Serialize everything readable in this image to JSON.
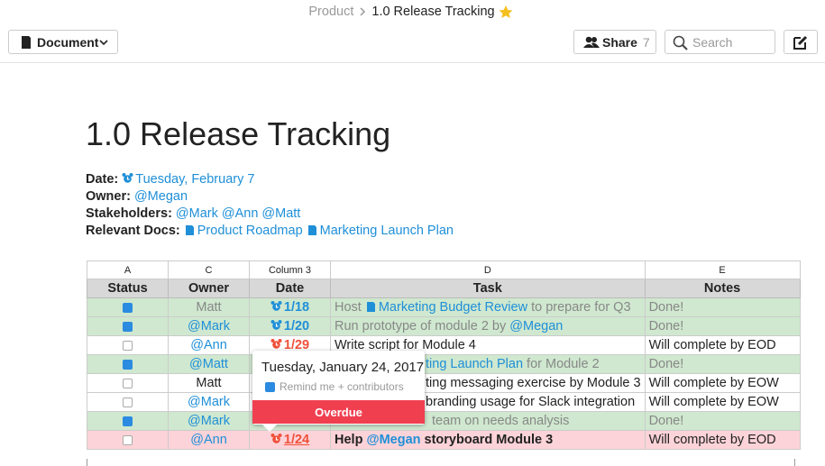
{
  "header": {
    "breadcrumb": [
      "Product",
      "1.0 Release Tracking"
    ],
    "document_button": "Document",
    "share": {
      "label": "Share",
      "count": 7
    },
    "search_placeholder": "Search"
  },
  "doc": {
    "title": "1.0 Release Tracking",
    "meta": [
      {
        "label": "Date:",
        "items": [
          {
            "text": "Tuesday, February 7",
            "kind": "date"
          }
        ]
      },
      {
        "label": "Owner:",
        "items": [
          {
            "text": "@Megan",
            "kind": "mention"
          }
        ]
      },
      {
        "label": "Stakeholders:",
        "items": [
          {
            "text": "@Mark",
            "kind": "mention"
          },
          {
            "text": "@Ann",
            "kind": "mention"
          },
          {
            "text": "@Matt",
            "kind": "mention"
          }
        ]
      },
      {
        "label": "Relevant Docs:",
        "items": [
          {
            "text": "Product Roadmap",
            "kind": "doc"
          },
          {
            "text": "Marketing Launch Plan",
            "kind": "doc"
          }
        ]
      }
    ]
  },
  "table": {
    "column_letters": [
      "A",
      "C",
      "Column 3",
      "D",
      "E"
    ],
    "headers": [
      "Status",
      "Owner",
      "Date",
      "Task",
      "Notes"
    ],
    "rows": [
      {
        "status": "done",
        "checked": true,
        "owner": "Matt",
        "date": {
          "text": "1/18",
          "overdue": false
        },
        "task": [
          {
            "text": "Host "
          },
          {
            "text": "Marketing Budget Review",
            "kind": "doc"
          },
          {
            "text": " to prepare for Q3"
          }
        ],
        "notes": "Done!"
      },
      {
        "status": "done",
        "checked": true,
        "owner": "@Mark",
        "date": {
          "text": "1/20",
          "overdue": false
        },
        "task": [
          {
            "text": "Run prototype of module 2 by "
          },
          {
            "text": "@Megan",
            "kind": "mention"
          }
        ],
        "notes": "Done!"
      },
      {
        "status": "open",
        "checked": false,
        "owner": "@Ann",
        "date": {
          "text": "1/29",
          "overdue": true
        },
        "task": [
          {
            "text": "Write script for Module 4"
          }
        ],
        "notes": "Will complete by EOD"
      },
      {
        "status": "done",
        "checked": true,
        "owner": "@Matt",
        "date": null,
        "task": [
          {
            "text": "ting Launch Plan",
            "kind": "link"
          },
          {
            "text": " for Module 2"
          }
        ],
        "notes": "Done!"
      },
      {
        "status": "open",
        "checked": false,
        "owner": "Matt",
        "date": null,
        "task": [
          {
            "text": "ting messaging exercise by Module 3"
          }
        ],
        "notes": "Will complete by EOW"
      },
      {
        "status": "open",
        "checked": false,
        "owner": "@Mark",
        "date": null,
        "task": [
          {
            "text": "branding usage for Slack integration"
          }
        ],
        "notes": "Will complete by EOW"
      },
      {
        "status": "done",
        "checked": true,
        "owner": "@Mark",
        "date": null,
        "task": [
          {
            "text": "team on needs analysis"
          }
        ],
        "notes": "Done!"
      },
      {
        "status": "overdue",
        "checked": false,
        "owner": "@Ann",
        "date": {
          "text": "1/24",
          "overdue": true
        },
        "bold": true,
        "task": [
          {
            "text": "Help "
          },
          {
            "text": "@Megan",
            "kind": "mention"
          },
          {
            "text": " storyboard Module 3"
          }
        ],
        "notes": "Will complete by EOD"
      }
    ]
  },
  "popup": {
    "date": "Tuesday, January 24, 2017",
    "remind": "Remind me + contributors",
    "remind_checked": true,
    "status": "Overdue"
  }
}
